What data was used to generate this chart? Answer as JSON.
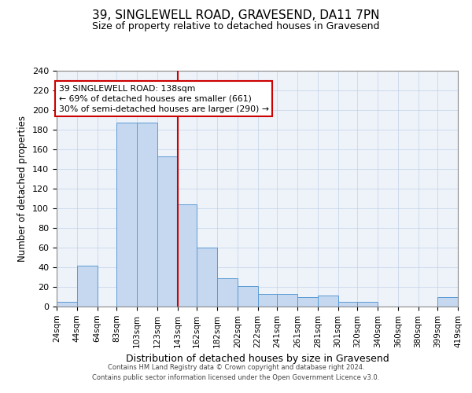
{
  "title": "39, SINGLEWELL ROAD, GRAVESEND, DA11 7PN",
  "subtitle": "Size of property relative to detached houses in Gravesend",
  "xlabel": "Distribution of detached houses by size in Gravesend",
  "ylabel": "Number of detached properties",
  "bar_edges": [
    24,
    44,
    64,
    83,
    103,
    123,
    143,
    162,
    182,
    202,
    222,
    241,
    261,
    281,
    301,
    320,
    340,
    360,
    380,
    399,
    419
  ],
  "bar_heights": [
    5,
    42,
    0,
    187,
    187,
    153,
    104,
    60,
    29,
    21,
    13,
    13,
    10,
    11,
    5,
    5,
    0,
    0,
    0,
    10
  ],
  "bar_labels": [
    "24sqm",
    "44sqm",
    "64sqm",
    "83sqm",
    "103sqm",
    "123sqm",
    "143sqm",
    "162sqm",
    "182sqm",
    "202sqm",
    "222sqm",
    "241sqm",
    "261sqm",
    "281sqm",
    "301sqm",
    "320sqm",
    "340sqm",
    "360sqm",
    "380sqm",
    "399sqm",
    "419sqm"
  ],
  "red_line_x": 143,
  "annotation_title": "39 SINGLEWELL ROAD: 138sqm",
  "annotation_line1": "← 69% of detached houses are smaller (661)",
  "annotation_line2": "30% of semi-detached houses are larger (290) →",
  "ylim": [
    0,
    240
  ],
  "yticks": [
    0,
    20,
    40,
    60,
    80,
    100,
    120,
    140,
    160,
    180,
    200,
    220,
    240
  ],
  "bar_color": "#c5d8f0",
  "bar_edge_color": "#5b9bd5",
  "red_line_color": "#cc0000",
  "annotation_box_color": "#cc0000",
  "background_color": "#eef2f9",
  "footer_line1": "Contains HM Land Registry data © Crown copyright and database right 2024.",
  "footer_line2": "Contains public sector information licensed under the Open Government Licence v3.0."
}
